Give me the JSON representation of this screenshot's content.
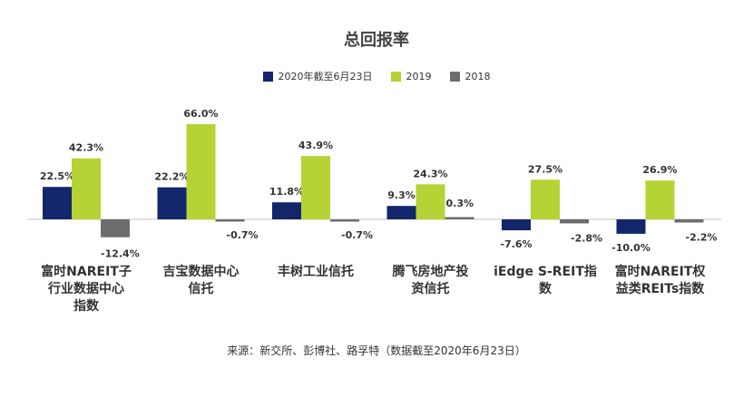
{
  "chart_data": {
    "type": "bar",
    "title": "总回报率",
    "categories": [
      [
        "富时NAREIT子",
        "行业数据中心",
        "指数"
      ],
      [
        "吉宝数据中心",
        "信托"
      ],
      [
        "丰树工业信托"
      ],
      [
        "腾飞房地产投",
        "资信托"
      ],
      [
        "iEdge S-REIT指",
        "数"
      ],
      [
        "富时NAREIT权",
        "益类REITs指数"
      ]
    ],
    "series": [
      {
        "name": "2020年截至6月23日",
        "color": "#14266b",
        "values": [
          22.5,
          22.2,
          11.8,
          9.3,
          -7.6,
          -10.0
        ]
      },
      {
        "name": "2019",
        "color": "#b5d334",
        "values": [
          42.3,
          66.0,
          43.9,
          24.3,
          27.5,
          26.9
        ]
      },
      {
        "name": "2018",
        "color": "#6d6d6d",
        "values": [
          -12.4,
          -0.7,
          -0.7,
          0.3,
          -2.8,
          -2.2
        ]
      }
    ],
    "value_labels": [
      [
        "22.5%",
        "22.2%",
        "11.8%",
        "9.3%",
        "-7.6%",
        "-10.0%"
      ],
      [
        "42.3%",
        "66.0%",
        "43.9%",
        "24.3%",
        "27.5%",
        "26.9%"
      ],
      [
        "-12.4%",
        "-0.7%",
        "-0.7%",
        "0.3%",
        "-2.8%",
        "-2.2%"
      ]
    ],
    "ylim": [
      -15,
      70
    ],
    "grid": false,
    "legend_position": "top"
  },
  "source_note": "来源：新交所、彭博社、路孚特（数据截至2020年6月23日）"
}
